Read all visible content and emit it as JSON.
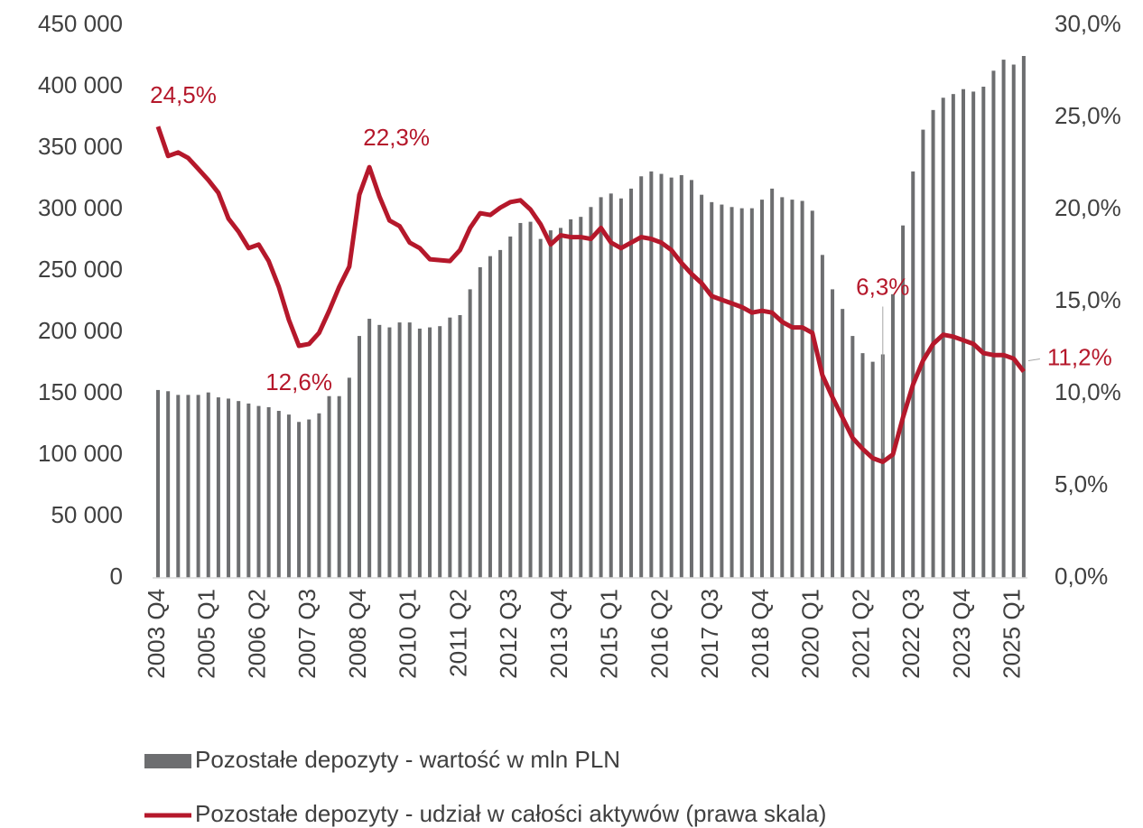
{
  "chart_data": {
    "type": "bar_line",
    "categories": [
      "2003 Q4",
      null,
      null,
      null,
      null,
      "2005 Q1",
      null,
      null,
      null,
      null,
      "2006 Q2",
      null,
      null,
      null,
      null,
      "2007 Q3",
      null,
      null,
      null,
      null,
      "2008 Q4",
      null,
      null,
      null,
      null,
      "2010 Q1",
      null,
      null,
      null,
      null,
      "2011 Q2",
      null,
      null,
      null,
      null,
      "2012 Q3",
      null,
      null,
      null,
      null,
      "2013 Q4",
      null,
      null,
      null,
      null,
      "2015 Q1",
      null,
      null,
      null,
      null,
      "2016 Q2",
      null,
      null,
      null,
      null,
      "2017 Q3",
      null,
      null,
      null,
      null,
      "2018 Q4",
      null,
      null,
      null,
      null,
      "2020 Q1",
      null,
      null,
      null,
      null,
      "2021 Q2",
      null,
      null,
      null,
      null,
      "2022 Q3",
      null,
      null,
      null,
      null,
      "2023 Q4",
      null,
      null,
      null,
      null,
      "2025 Q1",
      null
    ],
    "series": [
      {
        "name": "Pozostałe depozyty - wartość w mln PLN",
        "type": "bar",
        "axis": "y",
        "color": "#6d6e70",
        "values": [
          153000,
          152000,
          149000,
          149000,
          149000,
          151000,
          147000,
          146000,
          144000,
          142000,
          140000,
          139000,
          136000,
          133000,
          127000,
          129000,
          134000,
          148000,
          148000,
          163000,
          197000,
          211000,
          206000,
          204000,
          208000,
          208000,
          203000,
          204000,
          205000,
          212000,
          214000,
          235000,
          253000,
          262000,
          267000,
          278000,
          289000,
          290000,
          276000,
          283000,
          285000,
          292000,
          294000,
          302000,
          310000,
          313000,
          309000,
          317000,
          327000,
          331000,
          329000,
          326000,
          328000,
          324000,
          312000,
          306000,
          304000,
          302000,
          301000,
          301000,
          308000,
          317000,
          310000,
          308000,
          307000,
          299000,
          263000,
          235000,
          219000,
          197000,
          183000,
          176000,
          182000,
          231000,
          287000,
          331000,
          365000,
          381000,
          391000,
          394000,
          398000,
          396000,
          400000,
          413000,
          422000,
          418000,
          425000
        ]
      },
      {
        "name": "Pozostałe depozyty - udział w całości aktywów (prawa skala)",
        "type": "line",
        "axis": "y2",
        "color": "#b5182b",
        "values": [
          24.5,
          22.9,
          23.1,
          22.8,
          22.2,
          21.6,
          20.9,
          19.5,
          18.8,
          17.9,
          18.1,
          17.2,
          15.8,
          14.0,
          12.6,
          12.7,
          13.3,
          14.5,
          15.8,
          16.9,
          20.8,
          22.3,
          20.7,
          19.4,
          19.1,
          18.2,
          17.9,
          17.3,
          17.25,
          17.2,
          17.8,
          19.0,
          19.8,
          19.7,
          20.1,
          20.4,
          20.5,
          20.0,
          19.2,
          18.1,
          18.6,
          18.5,
          18.5,
          18.4,
          19.0,
          18.2,
          17.9,
          18.2,
          18.5,
          18.4,
          18.2,
          17.8,
          17.1,
          16.5,
          16.0,
          15.3,
          15.1,
          14.9,
          14.7,
          14.4,
          14.5,
          14.4,
          13.9,
          13.6,
          13.6,
          13.3,
          11.0,
          9.8,
          8.7,
          7.6,
          7.0,
          6.5,
          6.3,
          6.7,
          8.7,
          10.5,
          11.8,
          12.7,
          13.2,
          13.1,
          12.9,
          12.7,
          12.2,
          12.1,
          12.1,
          11.9,
          11.2
        ],
        "value_labels": [
          "24,5%",
          null,
          null,
          null,
          null,
          null,
          null,
          null,
          null,
          null,
          null,
          null,
          null,
          null,
          "12,6%",
          null,
          null,
          null,
          null,
          null,
          null,
          "22,3%",
          null,
          null,
          null,
          null,
          null,
          null,
          null,
          null,
          null,
          null,
          null,
          null,
          null,
          null,
          null,
          null,
          null,
          null,
          null,
          null,
          null,
          null,
          null,
          null,
          null,
          null,
          null,
          null,
          null,
          null,
          null,
          null,
          null,
          null,
          null,
          null,
          null,
          null,
          null,
          null,
          null,
          null,
          null,
          null,
          null,
          null,
          null,
          null,
          null,
          null,
          "6,3%",
          null,
          null,
          null,
          null,
          null,
          null,
          null,
          null,
          null,
          null,
          null,
          null,
          null,
          "11,2%"
        ]
      }
    ],
    "ylim": [
      0,
      450000
    ],
    "yticks": [
      0,
      {
        "value": 50000,
        "label": "50 000"
      },
      {
        "value": 100000,
        "label": "100 000"
      },
      {
        "value": 150000,
        "label": "150 000"
      },
      {
        "value": 200000,
        "label": "200 000"
      },
      {
        "value": 250000,
        "label": "250 000"
      },
      {
        "value": 300000,
        "label": "300 000"
      },
      {
        "value": 350000,
        "label": "350 000"
      },
      {
        "value": 400000,
        "label": "400 000"
      },
      {
        "value": 450000,
        "label": "450 000"
      }
    ],
    "y2lim": [
      0,
      30
    ],
    "y2ticks": [
      {
        "value": 0,
        "label": "0,0%"
      },
      {
        "value": 5,
        "label": "5,0%"
      },
      {
        "value": 10,
        "label": "10,0%"
      },
      {
        "value": 15,
        "label": "15,0%"
      },
      {
        "value": 20,
        "label": "20,0%"
      },
      {
        "value": 25,
        "label": "25,0%"
      },
      {
        "value": 30,
        "label": "30,0%"
      }
    ],
    "legend": "bottom"
  }
}
